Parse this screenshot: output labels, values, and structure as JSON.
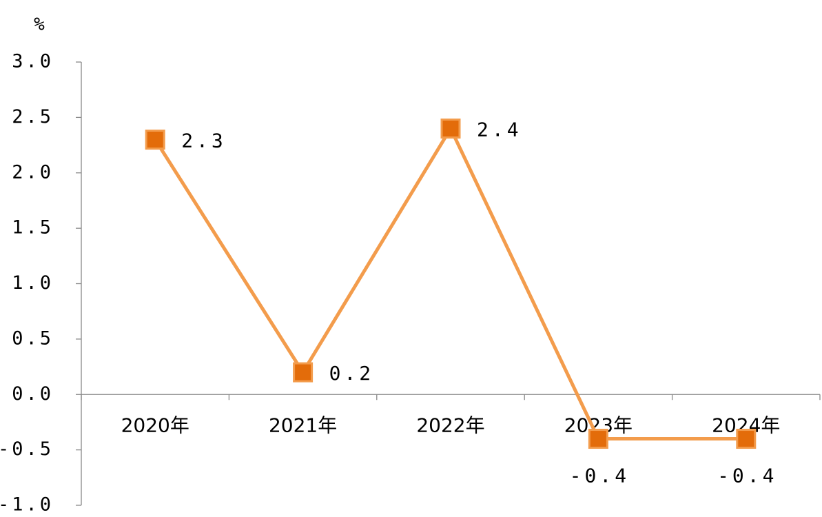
{
  "chart_data": {
    "type": "line",
    "unit_label": "%",
    "categories": [
      "2020年",
      "2021年",
      "2022年",
      "2023年",
      "2024年"
    ],
    "series": [
      {
        "name": "value",
        "color": "#f39c4c",
        "marker_color": "#e36c0a",
        "values": [
          2.3,
          0.2,
          2.4,
          -0.4,
          -0.4
        ]
      }
    ],
    "ylim": [
      -1,
      3
    ],
    "yticks": [
      {
        "value": -1,
        "label": "-1.0"
      },
      -0.5,
      {
        "value": 0,
        "label": "0.0"
      },
      0.5,
      {
        "value": 1,
        "label": "1.0"
      },
      1.5,
      {
        "value": 2,
        "label": "2.0"
      },
      2.5,
      {
        "value": 3,
        "label": "3.0"
      }
    ],
    "grid": false
  }
}
